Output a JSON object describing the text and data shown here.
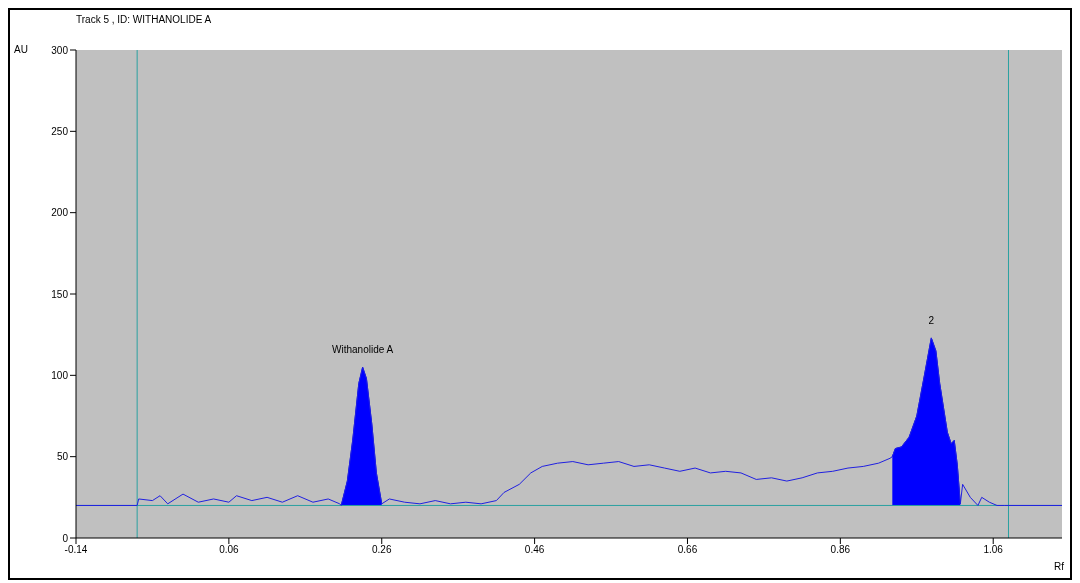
{
  "chart_data": {
    "type": "line",
    "title": "Track  5 , ID: WITHANOLIDE A",
    "xlabel": "Rf",
    "ylabel": "AU",
    "xlim": [
      -0.14,
      1.15
    ],
    "xticks": [
      -0.14,
      0.06,
      0.26,
      0.46,
      0.66,
      0.86,
      1.06
    ],
    "ylim": [
      0,
      300
    ],
    "yticks": [
      0,
      50,
      100,
      150,
      200,
      250,
      300
    ],
    "grid": false,
    "marker": "none",
    "line_style": "solid",
    "series": [
      {
        "color": "#2020e0",
        "x": [
          -0.14,
          -0.06,
          -0.058,
          -0.04,
          -0.03,
          -0.02,
          0.0,
          0.02,
          0.04,
          0.06,
          0.07,
          0.09,
          0.11,
          0.13,
          0.15,
          0.17,
          0.19,
          0.205,
          0.207,
          0.215,
          0.222,
          0.23,
          0.235,
          0.24,
          0.247,
          0.253,
          0.26,
          0.27,
          0.29,
          0.31,
          0.33,
          0.35,
          0.37,
          0.39,
          0.41,
          0.42,
          0.44,
          0.455,
          0.47,
          0.49,
          0.51,
          0.53,
          0.55,
          0.57,
          0.59,
          0.61,
          0.63,
          0.65,
          0.67,
          0.69,
          0.71,
          0.73,
          0.75,
          0.77,
          0.79,
          0.81,
          0.83,
          0.85,
          0.87,
          0.89,
          0.91,
          0.925,
          0.928,
          0.932,
          0.94,
          0.95,
          0.96,
          0.97,
          0.979,
          0.985,
          0.99,
          1.0,
          1.005,
          1.009,
          1.013,
          1.017,
          1.02,
          1.03,
          1.04,
          1.045,
          1.055,
          1.065,
          1.075,
          1.15
        ],
        "values": [
          20,
          20,
          24,
          23,
          26,
          21,
          27,
          22,
          24,
          22,
          26,
          23,
          25,
          22,
          26,
          22,
          24,
          21,
          20,
          35,
          60,
          95,
          105,
          98,
          70,
          40,
          21,
          24,
          22,
          21,
          23,
          21,
          22,
          21,
          23,
          28,
          33,
          40,
          44,
          46,
          47,
          45,
          46,
          47,
          44,
          45,
          43,
          41,
          43,
          40,
          41,
          40,
          36,
          37,
          35,
          37,
          40,
          41,
          43,
          44,
          46,
          49,
          50,
          55,
          56,
          62,
          75,
          100,
          123,
          115,
          95,
          65,
          58,
          60,
          45,
          21,
          33,
          25,
          20,
          25,
          22,
          20,
          20,
          20
        ]
      },
      {
        "type": "area",
        "color": "#0000ff",
        "x": [
          0.207,
          0.215,
          0.222,
          0.23,
          0.235,
          0.24,
          0.247,
          0.253,
          0.26
        ],
        "values": [
          20,
          35,
          60,
          95,
          105,
          98,
          70,
          40,
          21
        ]
      },
      {
        "type": "area",
        "color": "#0000ff",
        "x": [
          0.928,
          0.932,
          0.94,
          0.95,
          0.96,
          0.97,
          0.979,
          0.985,
          0.99,
          1.0,
          1.005,
          1.009,
          1.013,
          1.017
        ],
        "values": [
          50,
          55,
          56,
          62,
          75,
          100,
          123,
          115,
          95,
          65,
          58,
          60,
          45,
          21
        ]
      }
    ],
    "ref_lines": [
      {
        "axis": "x",
        "value": -0.06,
        "color": "#2aa0a0"
      },
      {
        "axis": "x",
        "value": 1.08,
        "color": "#2aa0a0"
      },
      {
        "axis": "y",
        "value": 20,
        "color": "#2aa0a0"
      }
    ],
    "annotations": [
      {
        "text": "Withanolide A",
        "x": 0.235,
        "y": 105
      },
      {
        "text": "2",
        "x": 0.979,
        "y": 123
      }
    ]
  }
}
